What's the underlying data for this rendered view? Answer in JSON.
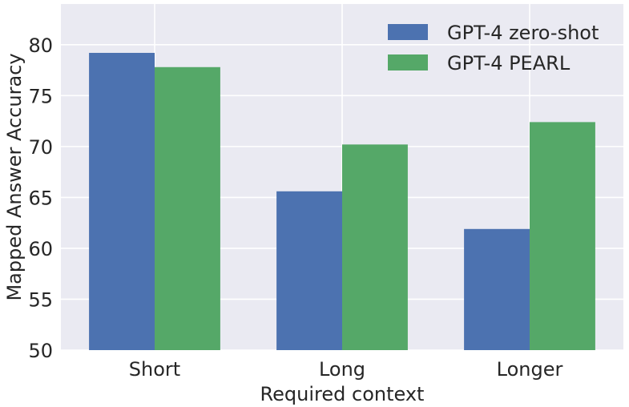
{
  "chart_data": {
    "type": "bar",
    "title": "",
    "xlabel": "Required context",
    "ylabel": "Mapped Answer Accuracy",
    "categories": [
      "Short",
      "Long",
      "Longer"
    ],
    "series": [
      {
        "name": "GPT-4 zero-shot",
        "color": "#4c72b0",
        "values": [
          79.2,
          65.6,
          61.9
        ]
      },
      {
        "name": "GPT-4 PEARL",
        "color": "#55a868",
        "values": [
          77.8,
          70.2,
          72.4
        ]
      }
    ],
    "ylim": [
      50,
      84
    ],
    "yticks": [
      50,
      55,
      60,
      65,
      70,
      75,
      80
    ],
    "grid": true,
    "legend_position": "top-right",
    "colors": {
      "background": "#eaeaf2",
      "grid": "#ffffff",
      "text": "#262626"
    }
  }
}
